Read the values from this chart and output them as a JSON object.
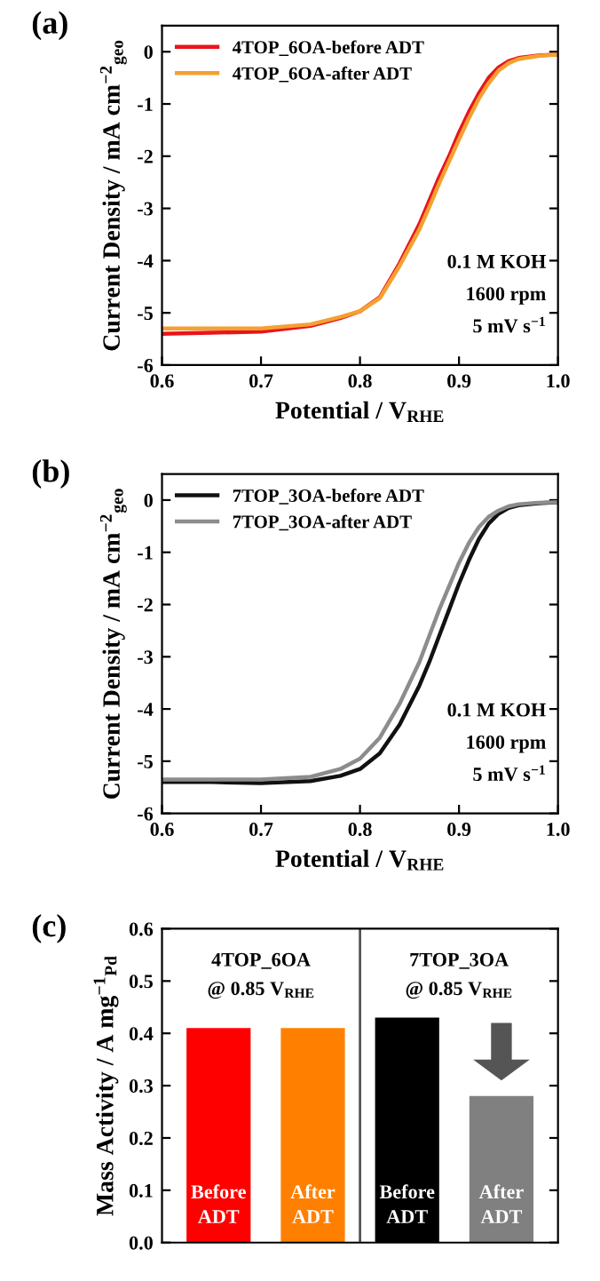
{
  "chart_data": [
    {
      "type": "line",
      "xlabel": "Potential / V$_{RHE}$",
      "ylabel": "Current Density / mA cm$^{−2}$$_{geo}$",
      "xlim": [
        0.6,
        1.0
      ],
      "ylim": [
        -6,
        0.5
      ],
      "xticks": [
        {
          "value": 0.6,
          "label": "0.6"
        },
        {
          "value": 0.7,
          "label": "0.7"
        },
        {
          "value": 0.8,
          "label": "0.8"
        },
        {
          "value": 0.9,
          "label": "0.9"
        },
        {
          "value": 1.0,
          "label": "1.0"
        }
      ],
      "yticks": [
        -6,
        -5,
        -4,
        -3,
        -2,
        -1,
        0
      ],
      "grid": false,
      "legend": "top left",
      "x": [
        0.6,
        0.65,
        0.7,
        0.75,
        0.78,
        0.8,
        0.82,
        0.84,
        0.86,
        0.87,
        0.88,
        0.89,
        0.9,
        0.91,
        0.92,
        0.93,
        0.94,
        0.95,
        0.96,
        0.98,
        1.0
      ],
      "series": [
        {
          "name": "4TOP_6OA-before ADT",
          "color": "#e8141c",
          "values": [
            -5.4,
            -5.38,
            -5.36,
            -5.25,
            -5.1,
            -4.97,
            -4.7,
            -4.05,
            -3.3,
            -2.85,
            -2.4,
            -2.0,
            -1.55,
            -1.15,
            -0.8,
            -0.5,
            -0.3,
            -0.18,
            -0.12,
            -0.07,
            -0.05
          ]
        },
        {
          "name": "4TOP_6OA-after ADT",
          "color": "#f5a030",
          "values": [
            -5.3,
            -5.3,
            -5.3,
            -5.22,
            -5.08,
            -4.97,
            -4.72,
            -4.1,
            -3.4,
            -2.97,
            -2.52,
            -2.1,
            -1.68,
            -1.27,
            -0.9,
            -0.6,
            -0.36,
            -0.22,
            -0.14,
            -0.08,
            -0.05
          ]
        }
      ],
      "annotations": [
        "(a)",
        "0.1 M KOH",
        "1600 rpm",
        "5 mV s$^{−1}$"
      ]
    },
    {
      "type": "line",
      "xlabel": "Potential / V$_{RHE}$",
      "ylabel": "Current Density / mA cm$^{−2}$$_{geo}$",
      "xlim": [
        0.6,
        1.0
      ],
      "ylim": [
        -6,
        0.5
      ],
      "xticks": [
        {
          "value": 0.6,
          "label": "0.6"
        },
        {
          "value": 0.7,
          "label": "0.7"
        },
        {
          "value": 0.8,
          "label": "0.8"
        },
        {
          "value": 0.9,
          "label": "0.9"
        },
        {
          "value": 1.0,
          "label": "1.0"
        }
      ],
      "yticks": [
        -6,
        -5,
        -4,
        -3,
        -2,
        -1,
        0
      ],
      "grid": false,
      "legend": "top left",
      "x": [
        0.6,
        0.65,
        0.7,
        0.75,
        0.78,
        0.8,
        0.82,
        0.84,
        0.86,
        0.87,
        0.88,
        0.89,
        0.9,
        0.91,
        0.92,
        0.93,
        0.94,
        0.95,
        0.96,
        0.98,
        1.0
      ],
      "series": [
        {
          "name": "7TOP_3OA-before ADT",
          "color": "#111111",
          "values": [
            -5.4,
            -5.4,
            -5.42,
            -5.38,
            -5.28,
            -5.15,
            -4.85,
            -4.3,
            -3.55,
            -3.1,
            -2.6,
            -2.1,
            -1.6,
            -1.15,
            -0.75,
            -0.45,
            -0.26,
            -0.15,
            -0.1,
            -0.06,
            -0.04
          ]
        },
        {
          "name": "7TOP_3OA-after ADT",
          "color": "#8c8c8c",
          "values": [
            -5.35,
            -5.35,
            -5.35,
            -5.3,
            -5.15,
            -4.95,
            -4.55,
            -3.9,
            -3.1,
            -2.6,
            -2.1,
            -1.65,
            -1.2,
            -0.82,
            -0.52,
            -0.32,
            -0.2,
            -0.12,
            -0.08,
            -0.05,
            -0.04
          ]
        }
      ],
      "annotations": [
        "(b)",
        "0.1 M KOH",
        "1600 rpm",
        "5 mV s$^{−1}$"
      ]
    },
    {
      "type": "bar",
      "ylabel": "Mass Activity / A mg$^{−1}$$_{Pd}$",
      "categories": [
        "Before\nADT",
        "After\nADT",
        "Before\nADT",
        "After\nADT"
      ],
      "values": [
        0.41,
        0.41,
        0.43,
        0.28
      ],
      "colors": [
        "#ff0000",
        "#ff8000",
        "#000000",
        "#808080"
      ],
      "ylim": [
        0,
        0.6
      ],
      "yticks": [
        {
          "value": 0.0,
          "label": "0.0"
        },
        {
          "value": 0.1,
          "label": "0.1"
        },
        {
          "value": 0.2,
          "label": "0.2"
        },
        {
          "value": 0.3,
          "label": "0.3"
        },
        {
          "value": 0.4,
          "label": "0.4"
        },
        {
          "value": 0.5,
          "label": "0.5"
        },
        {
          "value": 0.6,
          "label": "0.6"
        }
      ],
      "tick_labels": "y",
      "grid": false,
      "annotations": [
        "(c)",
        "4TOP_6OA\n@ 0.85 V$_{RHE}$",
        "7TOP_3OA\n@ 0.85 V$_{RHE}$"
      ]
    }
  ]
}
